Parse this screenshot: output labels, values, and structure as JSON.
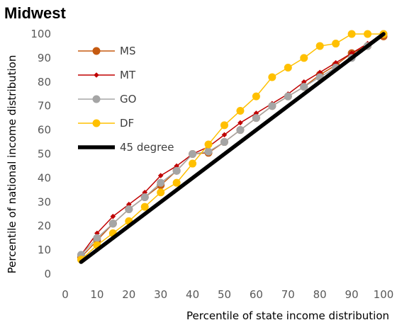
{
  "chart_data": {
    "type": "line",
    "title": "Midwest",
    "xlabel": "Percentile of state income distribution",
    "ylabel": "Percentile of national income distribution",
    "xlim": [
      0,
      100
    ],
    "ylim": [
      0,
      100
    ],
    "xticks": [
      0,
      10,
      20,
      30,
      40,
      50,
      60,
      70,
      80,
      90,
      100
    ],
    "yticks": [
      0,
      10,
      20,
      30,
      40,
      50,
      60,
      70,
      80,
      90,
      100
    ],
    "grid": false,
    "legend_position": "top-left",
    "series": [
      {
        "name": "MS",
        "color": "#c55a11",
        "marker": "circle",
        "x": [
          5,
          10,
          15,
          20,
          25,
          30,
          35,
          40,
          45,
          50,
          55,
          60,
          65,
          70,
          75,
          80,
          85,
          90,
          95,
          100
        ],
        "y": [
          7,
          14,
          21,
          27,
          32,
          37,
          43,
          50,
          50.5,
          55,
          60,
          65,
          70,
          74,
          78,
          83,
          87,
          92,
          95,
          99
        ]
      },
      {
        "name": "MT",
        "color": "#c00000",
        "marker": "diamond",
        "x": [
          5,
          10,
          15,
          20,
          25,
          30,
          35,
          40,
          45,
          50,
          55,
          60,
          65,
          70,
          75,
          80,
          85,
          90,
          95,
          100
        ],
        "y": [
          8,
          17,
          24,
          29,
          34,
          41,
          45,
          50,
          53,
          58,
          63,
          67,
          71,
          75,
          80,
          84,
          88,
          92,
          96,
          100
        ]
      },
      {
        "name": "GO",
        "color": "#a5a5a5",
        "marker": "circle",
        "x": [
          5,
          10,
          15,
          20,
          25,
          30,
          35,
          40,
          45,
          50,
          55,
          60,
          65,
          70,
          75,
          80,
          85,
          90,
          95,
          100
        ],
        "y": [
          8,
          15,
          21,
          27,
          32,
          38,
          43,
          50,
          51,
          55,
          60,
          65,
          70,
          74,
          78,
          82,
          86,
          90,
          95,
          100
        ]
      },
      {
        "name": "DF",
        "color": "#ffc000",
        "marker": "circle",
        "x": [
          5,
          10,
          15,
          20,
          25,
          30,
          35,
          40,
          45,
          50,
          55,
          60,
          65,
          70,
          75,
          80,
          85,
          90,
          95,
          100
        ],
        "y": [
          6,
          12,
          17,
          22,
          28,
          34,
          38,
          46,
          54,
          62,
          68,
          74,
          82,
          86,
          90,
          95,
          96,
          100,
          100,
          100
        ]
      },
      {
        "name": "45 degree",
        "color": "#000000",
        "marker": "none",
        "x": [
          5,
          100
        ],
        "y": [
          5,
          100
        ]
      }
    ]
  }
}
